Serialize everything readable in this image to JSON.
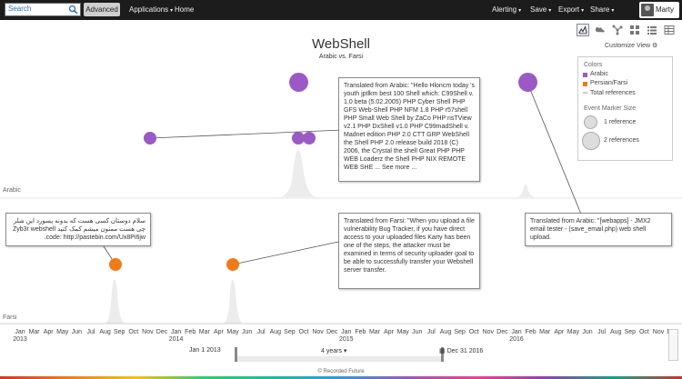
{
  "topbar": {
    "search_placeholder": "Search",
    "advanced_label": "Advanced",
    "applications_label": "Applications",
    "home_label": "Home",
    "alerting_label": "Alerting",
    "save_label": "Save",
    "export_label": "Export",
    "share_label": "Share",
    "user_name": "Marty"
  },
  "view_toolbar": {
    "buttons": [
      "timeline-view-icon",
      "map-view-icon",
      "network-view-icon",
      "grid-view-icon",
      "list-view-icon",
      "table-view-icon"
    ]
  },
  "title": "WebShell",
  "subtitle": "Arabic vs. Farsi",
  "customize_label": "Customize View",
  "legend": {
    "colors_heading": "Colors",
    "arabic_label": "Arabic",
    "farsi_label": "Persian/Farsi",
    "total_label": "Total references",
    "size_heading": "Event Marker Size",
    "one_ref": "1 reference",
    "two_ref": "2 references"
  },
  "lanes": {
    "arabic": "Arabic",
    "farsi": "Farsi"
  },
  "colors": {
    "arabic": "#9b59c6",
    "farsi": "#f07c17"
  },
  "tooltips": {
    "arabic_main": "Translated from Arabic: \"Hello Hloncm today 's youth jptlkm best 100 Shell which: C99Shell v. 1.0 beta (5.02.2005) PHP Cyber Shell PHP GFS Web-Shell PHP NFM 1.8 PHP r57shell PHP Small Web Shell by ZaCo PHP nsTView v2.1 PHP DxShell v1.0 PHP C99madShell v. Madnet edition PHP 2.0 CTT GRP WebShell the Shell PHP 2.0 release build 2018 (C) 2006, the Crystal the shell Great PHP PHP WEB Loaderz the Shell PHP NIX REMOTE WEB SHE ... See more ...",
    "farsi_original": "سلام دوستان کسی هست که بدونه پسورد این شلر چی هست ممنون میشم کمک کنید Zyb3r webshell code: http://pastebin.com/Ux8Pi6jw.",
    "farsi_translated": "Translated from Farsi: \"When you upload a file vulnerability Bug Tracker, if you have direct access to your uploaded files Karty has been one of the steps, the attacker must be examined in terms of security uploader goal to be able to successfully transfer your Webshell server transfer.",
    "arabic_right": "Translated from Arabic: \"[webapps] - JMX2 email tester - (save_email.php) web shell upload."
  },
  "axis": {
    "months": [
      "Jan\n2013",
      "Mar",
      "Apr",
      "May",
      "Jun",
      "Jul",
      "Aug",
      "Sep",
      "Oct",
      "Nov",
      "Dec",
      "Jan\n2014",
      "Feb",
      "Mar",
      "Apr",
      "May",
      "Jun",
      "Jul",
      "Aug",
      "Sep",
      "Oct",
      "Nov",
      "Dec",
      "Jan\n2015",
      "Feb",
      "Mar",
      "Apr",
      "May",
      "Jun",
      "Jul",
      "Aug",
      "Sep",
      "Oct",
      "Nov",
      "Dec",
      "Jan\n2016",
      "Feb",
      "Mar",
      "Apr",
      "May",
      "Jun",
      "Jul",
      "Aug",
      "Sep",
      "Oct",
      "Nov",
      "Dec"
    ]
  },
  "range": {
    "start": "Jan 1 2013",
    "span": "4 years",
    "end": "Dec 31 2016"
  },
  "footer": "© Recorded Future"
}
